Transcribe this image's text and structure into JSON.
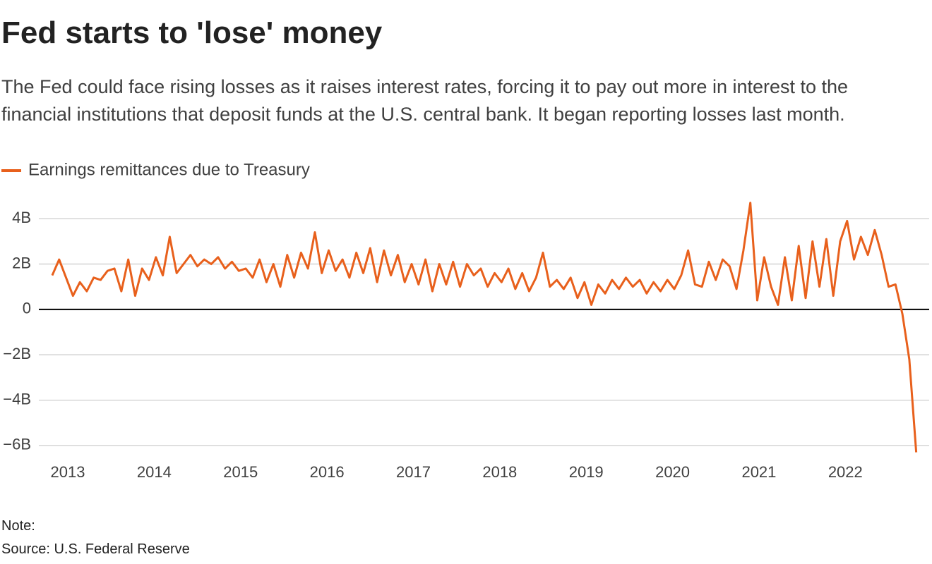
{
  "chart_data": {
    "type": "line",
    "title": "Fed starts to 'lose' money",
    "subtitle": "The Fed could face rising losses as it raises interest rates, forcing it to pay out more in interest to the financial institutions that deposit funds at the U.S. central bank. It began reporting losses last month.",
    "note": "Note:",
    "source": "Source: U.S. Federal Reserve",
    "x": [
      2012.82,
      2012.9,
      2012.98,
      2013.06,
      2013.14,
      2013.22,
      2013.3,
      2013.38,
      2013.46,
      2013.54,
      2013.62,
      2013.7,
      2013.78,
      2013.86,
      2013.94,
      2014.02,
      2014.1,
      2014.18,
      2014.26,
      2014.34,
      2014.42,
      2014.5,
      2014.58,
      2014.66,
      2014.74,
      2014.82,
      2014.9,
      2014.98,
      2015.06,
      2015.14,
      2015.22,
      2015.3,
      2015.38,
      2015.46,
      2015.54,
      2015.62,
      2015.7,
      2015.78,
      2015.86,
      2015.94,
      2016.02,
      2016.1,
      2016.18,
      2016.26,
      2016.34,
      2016.42,
      2016.5,
      2016.58,
      2016.66,
      2016.74,
      2016.82,
      2016.9,
      2016.98,
      2017.06,
      2017.14,
      2017.22,
      2017.3,
      2017.38,
      2017.46,
      2017.54,
      2017.62,
      2017.7,
      2017.78,
      2017.86,
      2017.94,
      2018.02,
      2018.1,
      2018.18,
      2018.26,
      2018.34,
      2018.42,
      2018.5,
      2018.58,
      2018.66,
      2018.74,
      2018.82,
      2018.9,
      2018.98,
      2019.06,
      2019.14,
      2019.22,
      2019.3,
      2019.38,
      2019.46,
      2019.54,
      2019.62,
      2019.7,
      2019.78,
      2019.86,
      2019.94,
      2020.02,
      2020.1,
      2020.18,
      2020.26,
      2020.34,
      2020.42,
      2020.5,
      2020.58,
      2020.66,
      2020.74,
      2020.82,
      2020.9,
      2020.98,
      2021.06,
      2021.14,
      2021.22,
      2021.3,
      2021.38,
      2021.46,
      2021.54,
      2021.62,
      2021.7,
      2021.78,
      2021.86,
      2021.94,
      2022.02,
      2022.1,
      2022.18,
      2022.26,
      2022.34,
      2022.42,
      2022.5,
      2022.58,
      2022.66,
      2022.74,
      2022.82
    ],
    "series": [
      {
        "name": "Earnings remittances due to Treasury",
        "color": "#e8601c",
        "values": [
          1.5,
          2.2,
          1.4,
          0.6,
          1.2,
          0.8,
          1.4,
          1.3,
          1.7,
          1.8,
          0.8,
          2.2,
          0.6,
          1.8,
          1.3,
          2.3,
          1.5,
          3.2,
          1.6,
          2.0,
          2.4,
          1.9,
          2.2,
          2.0,
          2.3,
          1.8,
          2.1,
          1.7,
          1.8,
          1.4,
          2.2,
          1.2,
          2.0,
          1.0,
          2.4,
          1.4,
          2.5,
          1.8,
          3.4,
          1.6,
          2.6,
          1.7,
          2.2,
          1.4,
          2.5,
          1.6,
          2.7,
          1.2,
          2.6,
          1.5,
          2.4,
          1.2,
          2.0,
          1.1,
          2.2,
          0.8,
          2.0,
          1.1,
          2.1,
          1.0,
          2.0,
          1.5,
          1.8,
          1.0,
          1.6,
          1.2,
          1.8,
          0.9,
          1.6,
          0.8,
          1.4,
          2.5,
          1.0,
          1.3,
          0.9,
          1.4,
          0.5,
          1.2,
          0.2,
          1.1,
          0.7,
          1.3,
          0.9,
          1.4,
          1.0,
          1.3,
          0.7,
          1.2,
          0.8,
          1.3,
          0.9,
          1.5,
          2.6,
          1.1,
          1.0,
          2.1,
          1.3,
          2.2,
          1.9,
          0.9,
          2.6,
          4.7,
          0.4,
          2.3,
          1.0,
          0.2,
          2.3,
          0.4,
          2.8,
          0.5,
          3.0,
          1.0,
          3.1,
          0.6,
          3.0,
          3.9,
          2.2,
          3.2,
          2.4,
          3.5,
          2.4,
          1.0,
          1.1,
          -0.2,
          -2.2,
          -6.3
        ]
      }
    ],
    "xlim": [
      2012.665,
      2022.97
    ],
    "xticks": [
      2013,
      2014,
      2015,
      2016,
      2017,
      2018,
      2019,
      2020,
      2021,
      2022
    ],
    "ylim": [
      -6.5,
      5
    ],
    "yticks": [
      {
        "value": -6,
        "label": "−6B"
      },
      {
        "value": -4,
        "label": "−4B"
      },
      {
        "value": -2,
        "label": "−2B"
      },
      0,
      {
        "value": 2,
        "label": "2B"
      },
      {
        "value": 4,
        "label": "4B"
      }
    ],
    "grid": true
  }
}
